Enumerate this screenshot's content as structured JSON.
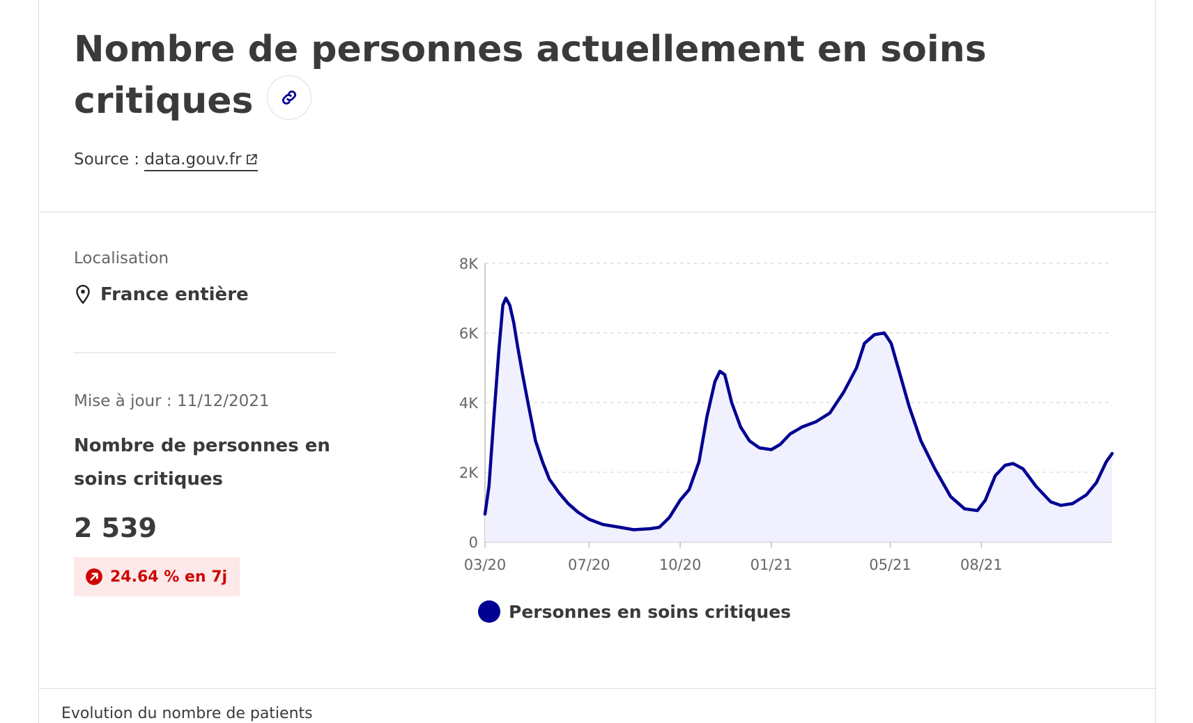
{
  "header": {
    "title": "Nombre de personnes actuellement en soins critiques",
    "link_icon": "link-icon",
    "source_prefix": "Source :",
    "source_link": "data.gouv.fr",
    "source_icon": "external-link-icon"
  },
  "panel": {
    "location_label": "Localisation",
    "location_icon": "map-pin-icon",
    "location_value": "France entière",
    "update_label": "Mise à jour : 11/12/2021",
    "metric_name": "Nombre de personnes en soins critiques",
    "metric_value": "2 539",
    "trend_icon": "arrow-up-right-icon",
    "trend_text": "24.64 % en 7j",
    "trend_color": "#ce0500"
  },
  "footer": {
    "partial_text": "Evolution du nombre de patients"
  },
  "colors": {
    "series": "#000091",
    "area_fill": "#f0f0ff",
    "grid": "#dddddd"
  },
  "chart_data": {
    "type": "area",
    "title": "",
    "xlabel": "",
    "ylabel": "",
    "ylim": [
      0,
      8000
    ],
    "yticks": [
      0,
      2000,
      4000,
      6000,
      8000
    ],
    "ytick_labels": [
      "0",
      "2K",
      "4K",
      "6K",
      "8K"
    ],
    "xticks": [
      "2020-03-18",
      "2020-07-01",
      "2020-10-01",
      "2021-01-01",
      "2021-05-01",
      "2021-08-01"
    ],
    "xtick_labels": [
      "03/20",
      "07/20",
      "10/20",
      "01/21",
      "05/21",
      "08/21"
    ],
    "grid": true,
    "legend_position": "bottom",
    "series": [
      {
        "name": "Personnes en soins critiques",
        "points": [
          [
            "2020-03-18",
            800
          ],
          [
            "2020-03-22",
            1600
          ],
          [
            "2020-03-27",
            3600
          ],
          [
            "2020-04-01",
            5500
          ],
          [
            "2020-04-05",
            6800
          ],
          [
            "2020-04-08",
            7000
          ],
          [
            "2020-04-12",
            6800
          ],
          [
            "2020-04-16",
            6300
          ],
          [
            "2020-04-20",
            5600
          ],
          [
            "2020-04-25",
            4800
          ],
          [
            "2020-05-01",
            3900
          ],
          [
            "2020-05-08",
            2900
          ],
          [
            "2020-05-15",
            2300
          ],
          [
            "2020-05-22",
            1800
          ],
          [
            "2020-06-01",
            1400
          ],
          [
            "2020-06-10",
            1100
          ],
          [
            "2020-06-20",
            850
          ],
          [
            "2020-07-01",
            650
          ],
          [
            "2020-07-15",
            500
          ],
          [
            "2020-08-01",
            420
          ],
          [
            "2020-08-15",
            350
          ],
          [
            "2020-09-01",
            380
          ],
          [
            "2020-09-10",
            420
          ],
          [
            "2020-09-20",
            700
          ],
          [
            "2020-10-01",
            1200
          ],
          [
            "2020-10-10",
            1500
          ],
          [
            "2020-10-20",
            2300
          ],
          [
            "2020-10-28",
            3600
          ],
          [
            "2020-11-05",
            4600
          ],
          [
            "2020-11-10",
            4900
          ],
          [
            "2020-11-15",
            4800
          ],
          [
            "2020-11-22",
            4000
          ],
          [
            "2020-12-01",
            3300
          ],
          [
            "2020-12-10",
            2900
          ],
          [
            "2020-12-20",
            2700
          ],
          [
            "2021-01-01",
            2650
          ],
          [
            "2021-01-10",
            2800
          ],
          [
            "2021-01-20",
            3100
          ],
          [
            "2021-02-01",
            3300
          ],
          [
            "2021-02-15",
            3450
          ],
          [
            "2021-03-01",
            3700
          ],
          [
            "2021-03-15",
            4300
          ],
          [
            "2021-03-28",
            5000
          ],
          [
            "2021-04-05",
            5700
          ],
          [
            "2021-04-15",
            5950
          ],
          [
            "2021-04-25",
            6000
          ],
          [
            "2021-05-02",
            5700
          ],
          [
            "2021-05-10",
            4900
          ],
          [
            "2021-05-20",
            3900
          ],
          [
            "2021-06-01",
            2900
          ],
          [
            "2021-06-15",
            2100
          ],
          [
            "2021-07-01",
            1300
          ],
          [
            "2021-07-15",
            950
          ],
          [
            "2021-07-28",
            900
          ],
          [
            "2021-08-05",
            1200
          ],
          [
            "2021-08-15",
            1900
          ],
          [
            "2021-08-25",
            2200
          ],
          [
            "2021-09-02",
            2250
          ],
          [
            "2021-09-12",
            2100
          ],
          [
            "2021-09-25",
            1600
          ],
          [
            "2021-10-10",
            1150
          ],
          [
            "2021-10-20",
            1050
          ],
          [
            "2021-11-01",
            1100
          ],
          [
            "2021-11-15",
            1350
          ],
          [
            "2021-11-25",
            1700
          ],
          [
            "2021-12-05",
            2300
          ],
          [
            "2021-12-11",
            2539
          ]
        ]
      }
    ]
  }
}
